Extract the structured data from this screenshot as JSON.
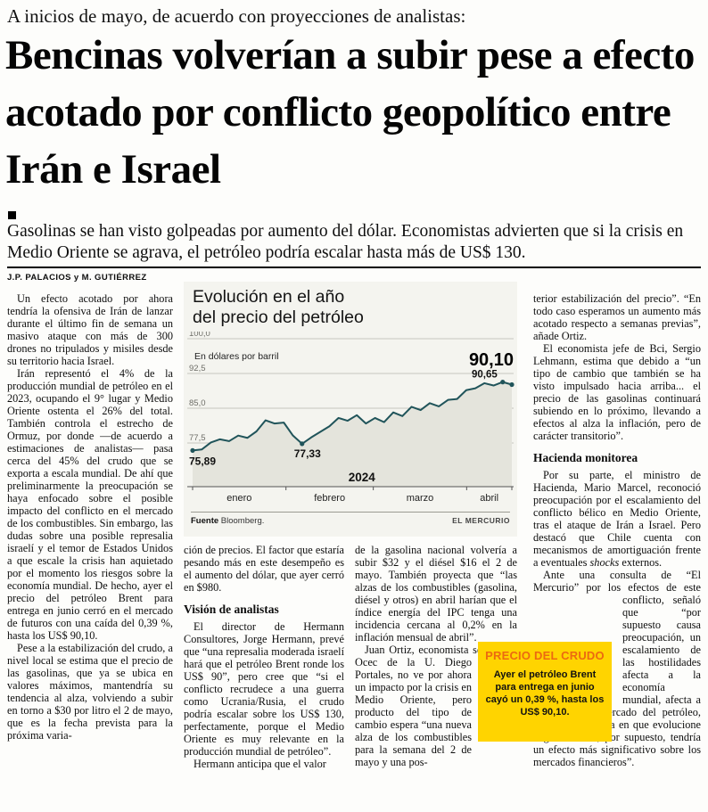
{
  "kicker": "A inicios de mayo, de acuerdo con proyecciones de analistas:",
  "headline": "Bencinas volverían a subir pese a efecto acotado por conflicto geopolítico entre Irán e Israel",
  "deck": "Gasolinas se han visto golpeadas por aumento del dólar. Economistas advierten que si la crisis en Medio Oriente se agrava, el petróleo podría escalar hasta más de US$ 130.",
  "byline": "J.P. PALACIOS y M. GUTIÉRREZ",
  "col1": {
    "p1": "Un efecto acotado por ahora tendría la ofensiva de Irán de lanzar durante el último fin de semana un masivo ataque con más de 300 drones no tripulados y misiles desde su territorio hacia Israel.",
    "p2": "Irán representó el 4% de la producción mundial de petróleo en el 2023, ocupando el 9° lugar y Medio Oriente ostenta el 26% del total. También controla el estrecho de Ormuz, por donde —de acuerdo a estimaciones de analistas— pasa cerca del 45% del crudo que se exporta a escala mundial. De ahí que preliminarmente la preocupación se haya enfocado sobre el posible impacto del conflicto en el mercado de los combustibles. Sin embargo, las dudas sobre una posible represalia israelí y el temor de Estados Unidos a que escale la crisis han aquietado por el momento los riesgos sobre la economía mundial. De hecho, ayer el precio del petróleo Brent para entrega en junio cerró en el mercado de futuros con una caída del 0,39 %, hasta los US$ 90,10.",
    "p3": "Pese a la estabilización del crudo, a nivel local se estima que el precio de las gasolinas, que ya se ubica en valores máximos, mantendría su tendencia al alza, volviendo a subir en torno a $30 por litro el 2 de mayo, que es la fecha prevista para la próxima varia-"
  },
  "col2": {
    "p1": "ción de precios. El factor que estaría pesando más en este desempeño es el aumento del dólar, que ayer cerró en $980.",
    "subhead": "Visión de analistas",
    "p2": "El director de Hermann Consultores, Jorge Hermann, prevé que “una represalia moderada israelí hará que el petróleo Brent ronde los US$ 90”, pero cree que “si el conflicto recrudece a una guerra como Ucrania/Rusia, el crudo podría escalar sobre los US$ 130, perfectamente, porque el Medio Oriente es muy relevante en la producción mundial de petróleo”.",
    "p3": "Hermann anticipa que el valor"
  },
  "col3": {
    "p1": "de la gasolina nacional volvería a subir $32 y el diésel $16 el 2 de mayo. También proyecta que “las alzas de los combustibles (gasolina, diésel y otros) en abril harían que el índice energía del IPC tenga una incidencia cercana al 0,2% en la inflación mensual de abril”.",
    "p2a": "Juan Ortiz, economista sénior del Ocec de la U. Diego ",
    "p2b": "Portales, no ve por ahora un impacto por la crisis en Medio Oriente, pero producto del tipo de cambio espera “una nueva alza de los combustibles para la semana del 2 de mayo y una pos-"
  },
  "col4": {
    "p1": "terior estabilización del precio”. “En todo caso esperamos un aumento más acotado respecto a semanas previas”, añade Ortiz.",
    "p2": "El economista jefe de Bci, Sergio Lehmann, estima que debido a “un tipo de cambio que también se ha visto impulsado hacia arriba... el precio de las gasolinas continuará subiendo en lo próximo, llevando a efectos al alza la inflación, pero de carácter transitorio”.",
    "subhead": "Hacienda monitorea",
    "p3a": "Por su parte, el ministro de Hacienda, Mario Marcel, reconoció preocupación por el escalamiento del conflicto bélico en Medio Oriente, tras el ataque de Irán a Israel. Pero destacó que Chile cuenta con mecanismos de amortiguación frente a eventuales ",
    "p3em": "shocks",
    "p3b": " externos.",
    "p4a": "Ante una consulta de “El Mercurio” por los efectos de este ",
    "p4b": "conflicto, señaló que “por supuesto causa preocupación, un escalamiento de las hostilidades afecta a la economía mundial, afecta a lo que es el mercado del petróleo, pero en la medida en que evolucione negativamente, por supuesto, tendría un efecto más significativo sobre los mercados financieros”."
  },
  "sidebox": {
    "title": "PRECIO DEL CRUDO",
    "body": "Ayer el petróleo Brent para entrega en junio cayó un 0,39 %, hasta los US$ 90,10."
  },
  "chart_data": {
    "type": "line",
    "title_line1": "Evolución en el año",
    "title_line2": "del precio del petróleo",
    "unit_label": "En dólares por barril",
    "year_label": "2024",
    "months": [
      "enero",
      "febrero",
      "marzo",
      "abril"
    ],
    "month_days": [
      31,
      29,
      31,
      15
    ],
    "yticks": [
      100.0,
      92.5,
      85.0,
      77.5
    ],
    "ytick_labels": [
      "100,0",
      "92,5",
      "85,0",
      "77,5"
    ],
    "ylim": [
      68,
      101
    ],
    "values": [
      75.89,
      76.1,
      77.6,
      78.3,
      77.9,
      79.1,
      78.6,
      80.0,
      82.4,
      81.7,
      81.9,
      79.1,
      77.33,
      78.7,
      79.9,
      81.1,
      82.9,
      82.3,
      83.5,
      81.7,
      82.9,
      82.0,
      84.1,
      83.3,
      85.3,
      84.6,
      86.1,
      85.4,
      86.8,
      87.0,
      88.9,
      89.3,
      90.4,
      89.9,
      90.65,
      90.1
    ],
    "annotations": [
      {
        "i": 0,
        "label": "75,89",
        "pos": "below-left"
      },
      {
        "i": 12,
        "label": "77,33",
        "pos": "below"
      },
      {
        "i": 34,
        "label": "90,65",
        "pos": "above"
      },
      {
        "i": 35,
        "label": "90,10",
        "pos": "big"
      }
    ],
    "source_label": "Fuente",
    "source": "Bloomberg.",
    "credit": "EL MERCURIO"
  },
  "colors": {
    "chart_line": "#20545a",
    "chart_area": "#e4e4dc",
    "chart_panel": "#f4f4ef",
    "sidebox_bg": "#ffd400",
    "sidebox_title": "#ec6a10"
  }
}
